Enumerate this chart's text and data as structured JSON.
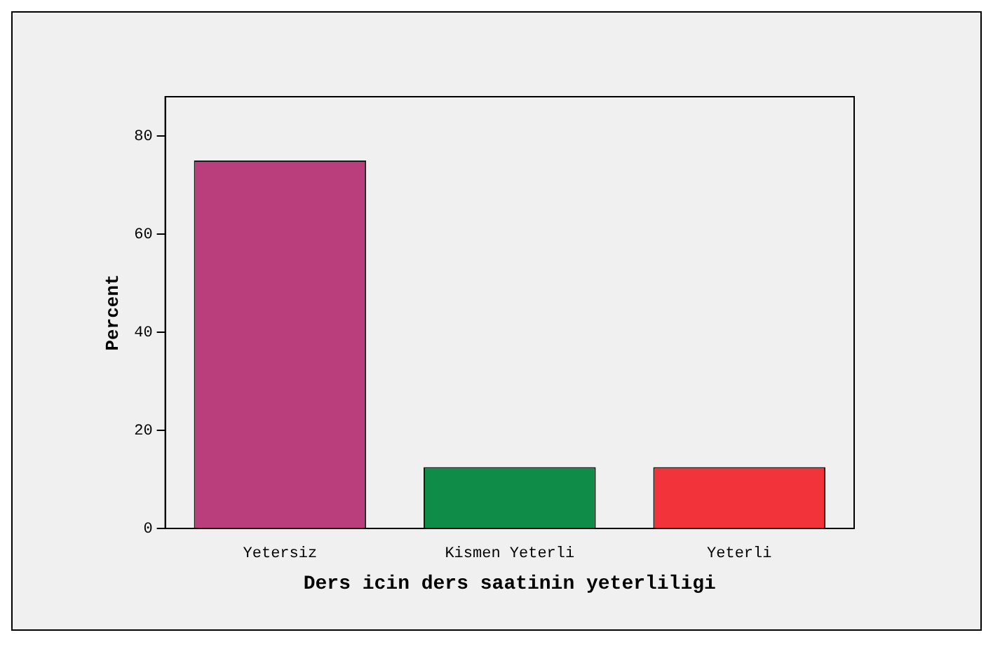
{
  "chart_data": {
    "type": "bar",
    "xlabel": "Ders icin ders saatinin yeterliligi",
    "ylabel": "Percent",
    "categories": [
      "Yetersiz",
      "Kismen Yeterli",
      "Yeterli"
    ],
    "values": [
      75,
      12.5,
      12.5
    ],
    "colors": [
      "#bb3e7c",
      "#0f8c48",
      "#f2343a"
    ],
    "ylim": [
      0,
      88
    ],
    "yticks": [
      0,
      20,
      40,
      60,
      80
    ],
    "grid": false,
    "legend": false
  }
}
